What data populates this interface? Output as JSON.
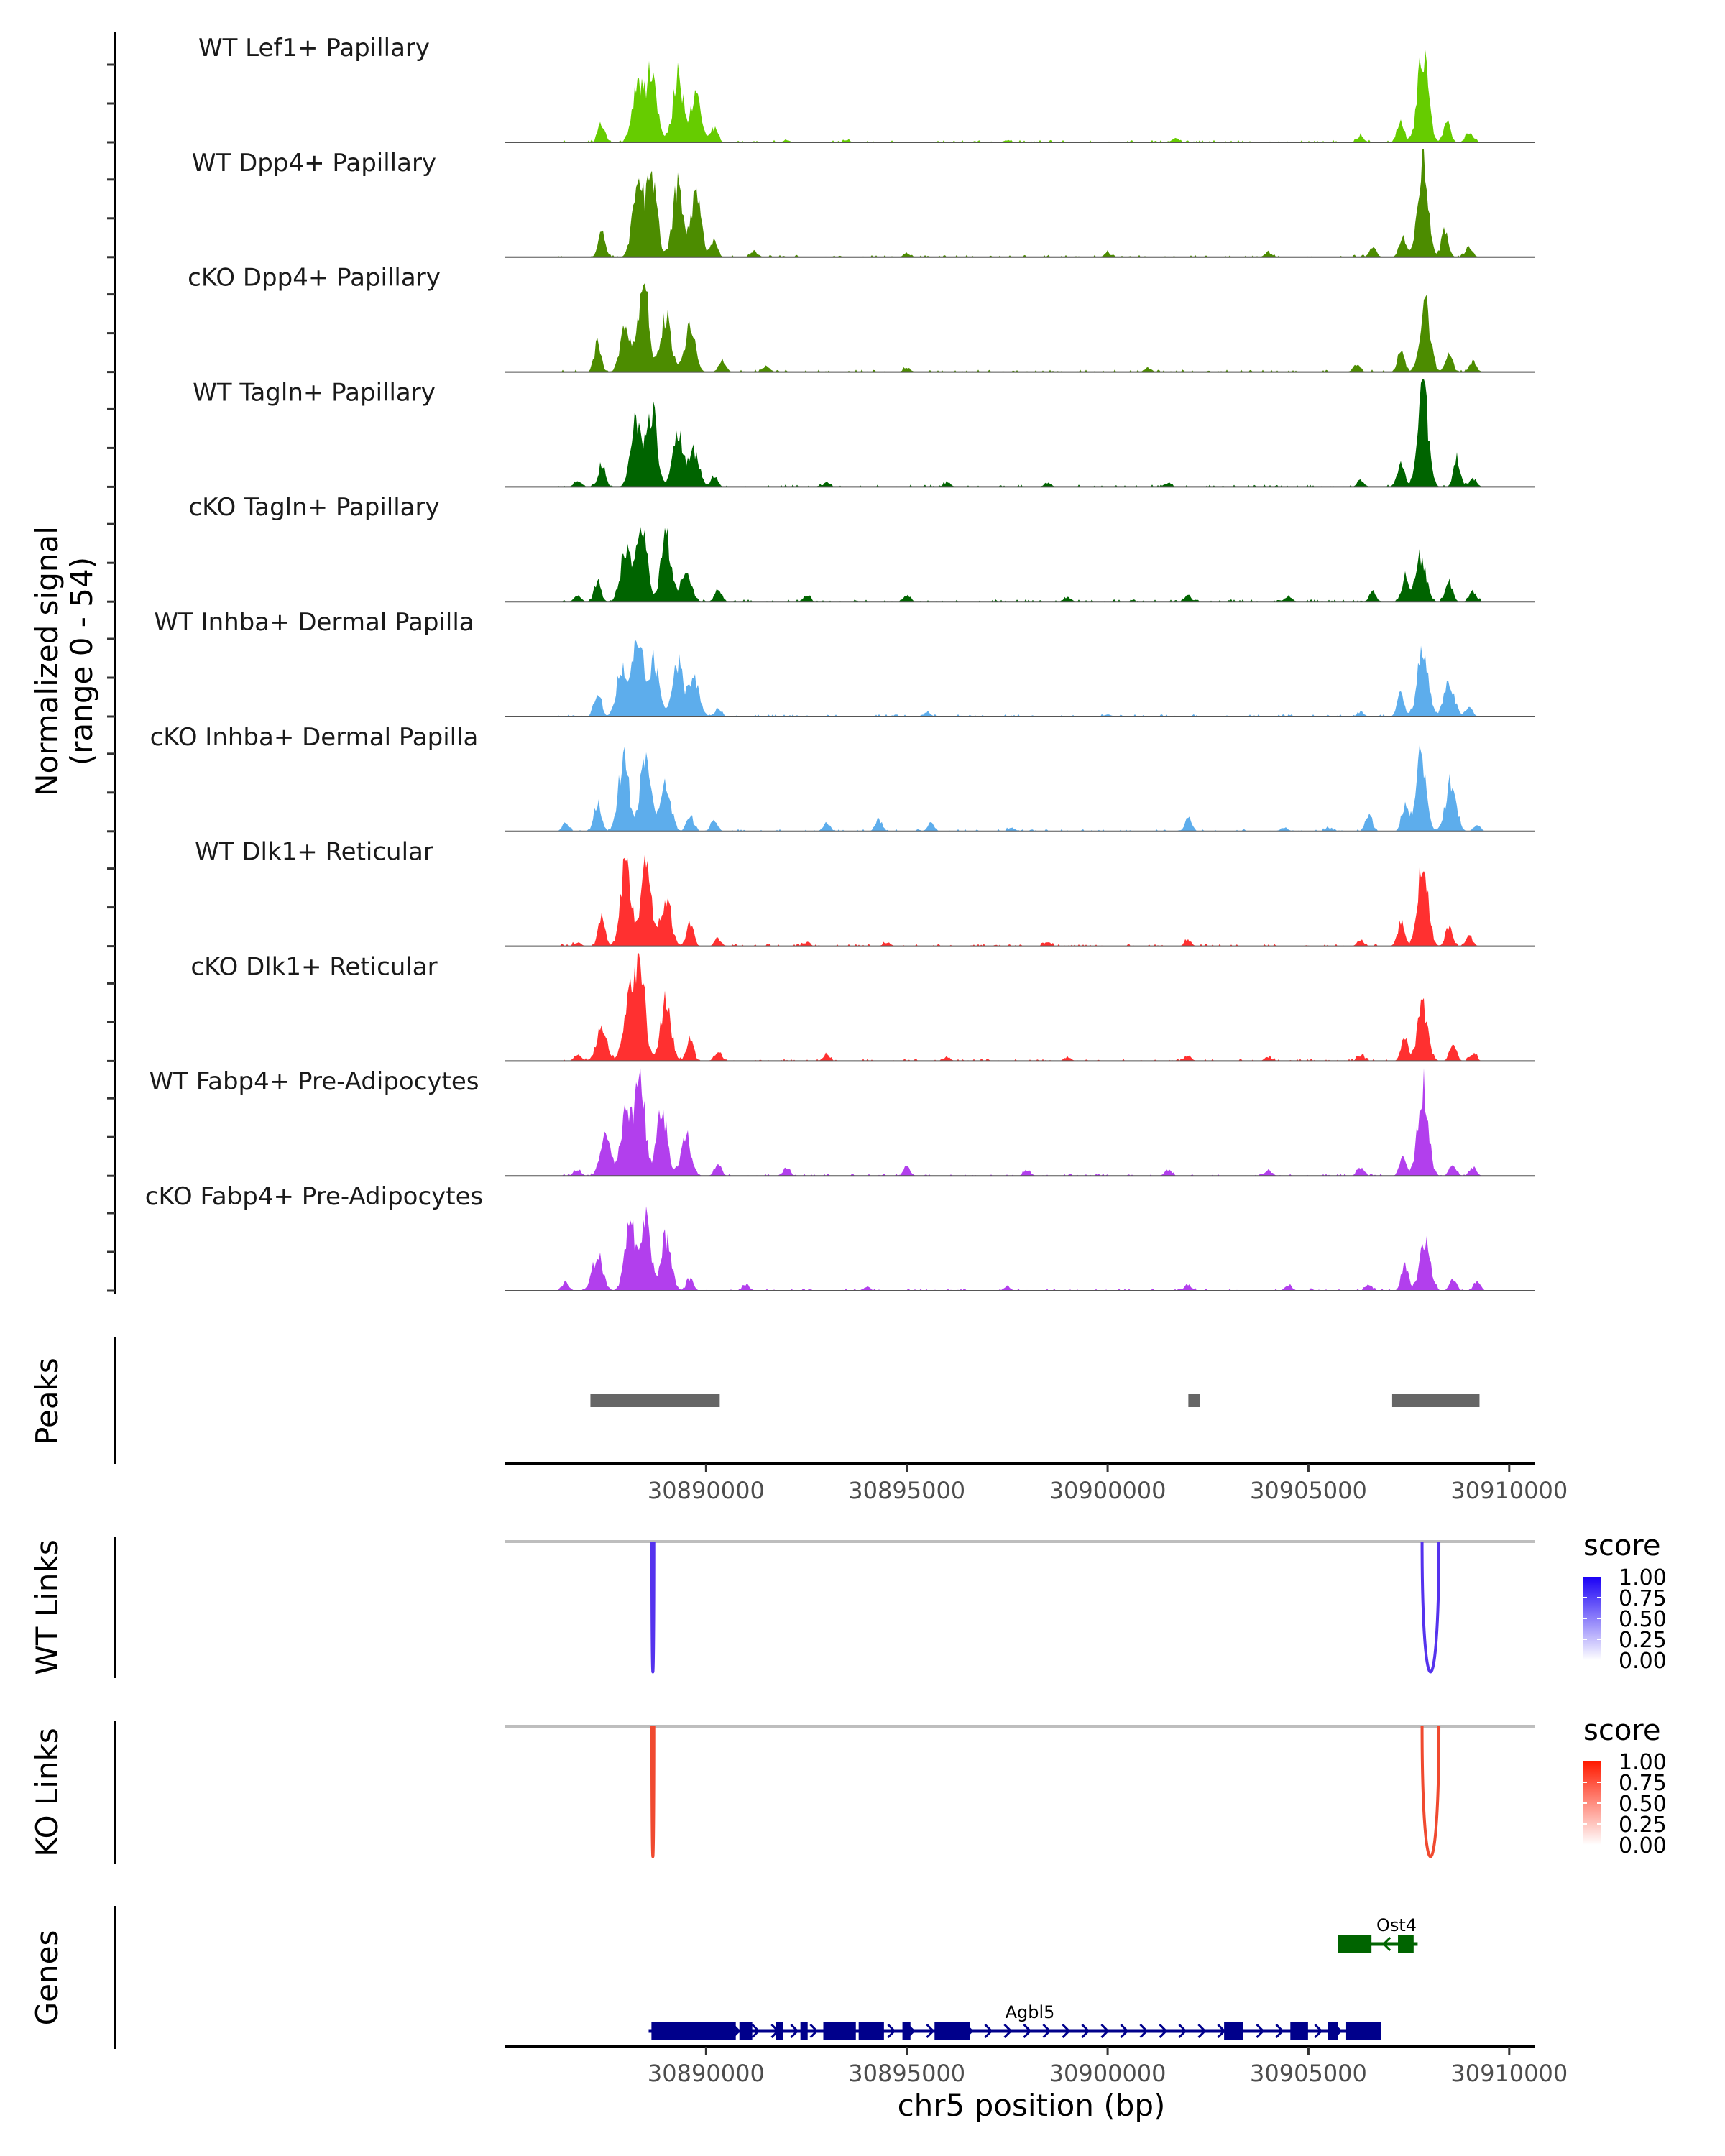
{
  "chart_data": {
    "type": "area",
    "title": "",
    "xlabel": "chr5 position (bp)",
    "ylabel": "Normalized signal\n(range 0 - 54)",
    "ylabel_lines": [
      "Normalized signal",
      "(range 0 - 54)"
    ],
    "ylim": [
      0,
      54
    ],
    "xlim": [
      30885000,
      30910630
    ],
    "x_ticks": [
      30890000,
      30895000,
      30900000,
      30905000,
      30910000
    ],
    "x_tick_labels": [
      "30890000",
      "30895000",
      "30900000",
      "30905000",
      "30910000"
    ],
    "coverage_tracks": [
      {
        "name": "WT Lef1+ Papillary",
        "color": "#66CC00",
        "peaks": [
          [
            30887400,
            10
          ],
          [
            30888300,
            28
          ],
          [
            30888650,
            36
          ],
          [
            30889300,
            32
          ],
          [
            30889750,
            22
          ],
          [
            30890200,
            7
          ],
          [
            30892000,
            1
          ],
          [
            30893500,
            1
          ],
          [
            30897500,
            1
          ],
          [
            30901700,
            2
          ],
          [
            30906300,
            3
          ],
          [
            30907300,
            10
          ],
          [
            30907850,
            44
          ],
          [
            30908450,
            11
          ],
          [
            30909000,
            5
          ]
        ]
      },
      {
        "name": "WT Dpp4+ Papillary",
        "color": "#4C8C00",
        "peaks": [
          [
            30887400,
            12
          ],
          [
            30888300,
            36
          ],
          [
            30888650,
            40
          ],
          [
            30889300,
            35
          ],
          [
            30889750,
            30
          ],
          [
            30890200,
            8
          ],
          [
            30891200,
            3
          ],
          [
            30895000,
            2
          ],
          [
            30900000,
            2
          ],
          [
            30904000,
            2
          ],
          [
            30906600,
            5
          ],
          [
            30907350,
            10
          ],
          [
            30907850,
            46
          ],
          [
            30908400,
            14
          ],
          [
            30909000,
            5
          ]
        ]
      },
      {
        "name": "cKO Dpp4+ Papillary",
        "color": "#4C8C00",
        "peaks": [
          [
            30887300,
            14
          ],
          [
            30888000,
            24
          ],
          [
            30888450,
            46
          ],
          [
            30889000,
            28
          ],
          [
            30889600,
            22
          ],
          [
            30890400,
            6
          ],
          [
            30891500,
            3
          ],
          [
            30895000,
            2
          ],
          [
            30901000,
            2
          ],
          [
            30906200,
            4
          ],
          [
            30907300,
            10
          ],
          [
            30907900,
            33
          ],
          [
            30908500,
            10
          ],
          [
            30909100,
            5
          ]
        ]
      },
      {
        "name": "WT Tagln+ Papillary",
        "color": "#006400",
        "peaks": [
          [
            30886800,
            3
          ],
          [
            30887400,
            12
          ],
          [
            30888250,
            34
          ],
          [
            30888650,
            38
          ],
          [
            30889300,
            26
          ],
          [
            30889700,
            18
          ],
          [
            30890200,
            5
          ],
          [
            30893000,
            2
          ],
          [
            30896000,
            2
          ],
          [
            30898500,
            2
          ],
          [
            30901500,
            2
          ],
          [
            30906300,
            3
          ],
          [
            30907300,
            12
          ],
          [
            30907850,
            50
          ],
          [
            30908700,
            14
          ],
          [
            30909100,
            4
          ]
        ]
      },
      {
        "name": "cKO Tagln+ Papillary",
        "color": "#006400",
        "peaks": [
          [
            30886800,
            3
          ],
          [
            30887300,
            10
          ],
          [
            30888000,
            26
          ],
          [
            30888400,
            42
          ],
          [
            30889000,
            32
          ],
          [
            30889500,
            16
          ],
          [
            30890300,
            6
          ],
          [
            30892500,
            3
          ],
          [
            30895000,
            3
          ],
          [
            30899000,
            2
          ],
          [
            30902000,
            3
          ],
          [
            30904500,
            3
          ],
          [
            30906600,
            5
          ],
          [
            30907400,
            12
          ],
          [
            30907800,
            22
          ],
          [
            30908500,
            10
          ],
          [
            30909100,
            5
          ]
        ]
      },
      {
        "name": "WT Inhba+ Dermal Papilla",
        "color": "#5DADEC",
        "peaks": [
          [
            30887300,
            12
          ],
          [
            30887900,
            24
          ],
          [
            30888300,
            40
          ],
          [
            30888700,
            28
          ],
          [
            30889300,
            26
          ],
          [
            30889700,
            18
          ],
          [
            30890300,
            4
          ],
          [
            30895500,
            2
          ],
          [
            30900000,
            1
          ],
          [
            30906300,
            2
          ],
          [
            30907300,
            12
          ],
          [
            30907850,
            36
          ],
          [
            30908500,
            16
          ],
          [
            30909000,
            5
          ]
        ]
      },
      {
        "name": "cKO Inhba+ Dermal Papilla",
        "color": "#5DADEC",
        "peaks": [
          [
            30886500,
            4
          ],
          [
            30887300,
            14
          ],
          [
            30887950,
            36
          ],
          [
            30888500,
            40
          ],
          [
            30889000,
            22
          ],
          [
            30889600,
            8
          ],
          [
            30890200,
            5
          ],
          [
            30893000,
            4
          ],
          [
            30894300,
            6
          ],
          [
            30895600,
            4
          ],
          [
            30897600,
            2
          ],
          [
            30902000,
            6
          ],
          [
            30904400,
            2
          ],
          [
            30905500,
            2
          ],
          [
            30906500,
            8
          ],
          [
            30907400,
            12
          ],
          [
            30907800,
            38
          ],
          [
            30908550,
            26
          ],
          [
            30909200,
            3
          ]
        ]
      },
      {
        "name": "WT Dlk1+ Reticular",
        "color": "#FF3030",
        "peaks": [
          [
            30886800,
            2
          ],
          [
            30887400,
            14
          ],
          [
            30888000,
            40
          ],
          [
            30888500,
            42
          ],
          [
            30889000,
            24
          ],
          [
            30889600,
            12
          ],
          [
            30890300,
            4
          ],
          [
            30892500,
            2
          ],
          [
            30894500,
            2
          ],
          [
            30898500,
            2
          ],
          [
            30902000,
            3
          ],
          [
            30906300,
            3
          ],
          [
            30907300,
            12
          ],
          [
            30907850,
            40
          ],
          [
            30908500,
            10
          ],
          [
            30909000,
            5
          ]
        ]
      },
      {
        "name": "cKO Dlk1+ Reticular",
        "color": "#FF3030",
        "peaks": [
          [
            30886800,
            3
          ],
          [
            30887400,
            16
          ],
          [
            30888050,
            28
          ],
          [
            30888350,
            48
          ],
          [
            30889000,
            30
          ],
          [
            30889600,
            12
          ],
          [
            30890300,
            5
          ],
          [
            30893000,
            3
          ],
          [
            30896000,
            2
          ],
          [
            30899000,
            2
          ],
          [
            30902000,
            3
          ],
          [
            30904000,
            2
          ],
          [
            30906300,
            3
          ],
          [
            30907400,
            12
          ],
          [
            30907850,
            28
          ],
          [
            30908600,
            8
          ],
          [
            30909100,
            4
          ]
        ]
      },
      {
        "name": "WT Fabp4+ Pre-Adipocytes",
        "color": "#B23FED",
        "peaks": [
          [
            30886800,
            3
          ],
          [
            30887500,
            20
          ],
          [
            30888000,
            30
          ],
          [
            30888350,
            50
          ],
          [
            30888900,
            34
          ],
          [
            30889500,
            20
          ],
          [
            30890300,
            6
          ],
          [
            30892000,
            4
          ],
          [
            30895000,
            4
          ],
          [
            30898000,
            3
          ],
          [
            30901500,
            3
          ],
          [
            30904000,
            3
          ],
          [
            30906300,
            4
          ],
          [
            30907350,
            8
          ],
          [
            30907850,
            44
          ],
          [
            30908600,
            6
          ],
          [
            30909100,
            4
          ]
        ]
      },
      {
        "name": "cKO Fabp4+ Pre-Adipocytes",
        "color": "#B23FED",
        "peaks": [
          [
            30886500,
            4
          ],
          [
            30887300,
            18
          ],
          [
            30888100,
            34
          ],
          [
            30888500,
            34
          ],
          [
            30889000,
            26
          ],
          [
            30889600,
            6
          ],
          [
            30891000,
            3
          ],
          [
            30894000,
            2
          ],
          [
            30897500,
            2
          ],
          [
            30902000,
            3
          ],
          [
            30904500,
            3
          ],
          [
            30906500,
            3
          ],
          [
            30907400,
            14
          ],
          [
            30907900,
            26
          ],
          [
            30908600,
            6
          ],
          [
            30909200,
            4
          ]
        ]
      }
    ],
    "peaks_track": {
      "label": "Peaks",
      "color": "#666666",
      "regions": [
        [
          30887120,
          30890340
        ],
        [
          30902010,
          30902300
        ],
        [
          30907085,
          30909260
        ]
      ]
    },
    "link_tracks": [
      {
        "label": "WT Links",
        "color": "#5533EE",
        "legend_title": "score",
        "legend_colors": [
          "#FFFFFF",
          "#1A00F5"
        ],
        "links": [
          {
            "start": 30888650,
            "end": 30888700,
            "score": 0.8
          },
          {
            "start": 30907830,
            "end": 30908250,
            "score": 0.9
          }
        ]
      },
      {
        "label": "KO Links",
        "color": "#F04A30",
        "legend_title": "score",
        "legend_colors": [
          "#FFFFFF",
          "#FF1A00"
        ],
        "links": [
          {
            "start": 30888650,
            "end": 30888700,
            "score": 0.8
          },
          {
            "start": 30907830,
            "end": 30908250,
            "score": 0.9
          }
        ]
      }
    ],
    "legend_ticks": [
      "1.00",
      "0.75",
      "0.50",
      "0.25",
      "0.00"
    ],
    "genes_track": {
      "label": "Genes",
      "genes": [
        {
          "name": "Ost4",
          "strand": "-",
          "color": "#006400",
          "row": 0,
          "start": 30905730,
          "end": 30907720,
          "exons": [
            [
              30905730,
              30906570
            ],
            [
              30907230,
              30907620
            ]
          ]
        },
        {
          "name": "Agbl5",
          "strand": "+",
          "color": "#00008B",
          "row": 1,
          "start": 30888570,
          "end": 30906800,
          "exons": [
            [
              30888640,
              30890740
            ],
            [
              30890830,
              30891150
            ],
            [
              30891730,
              30891910
            ],
            [
              30892350,
              30892530
            ],
            [
              30892920,
              30893730
            ],
            [
              30893800,
              30894430
            ],
            [
              30894890,
              30895090
            ],
            [
              30895690,
              30896570
            ],
            [
              30902900,
              30903380
            ],
            [
              30904550,
              30904990
            ],
            [
              30905480,
              30905730
            ],
            [
              30905940,
              30906800
            ]
          ]
        }
      ]
    }
  }
}
